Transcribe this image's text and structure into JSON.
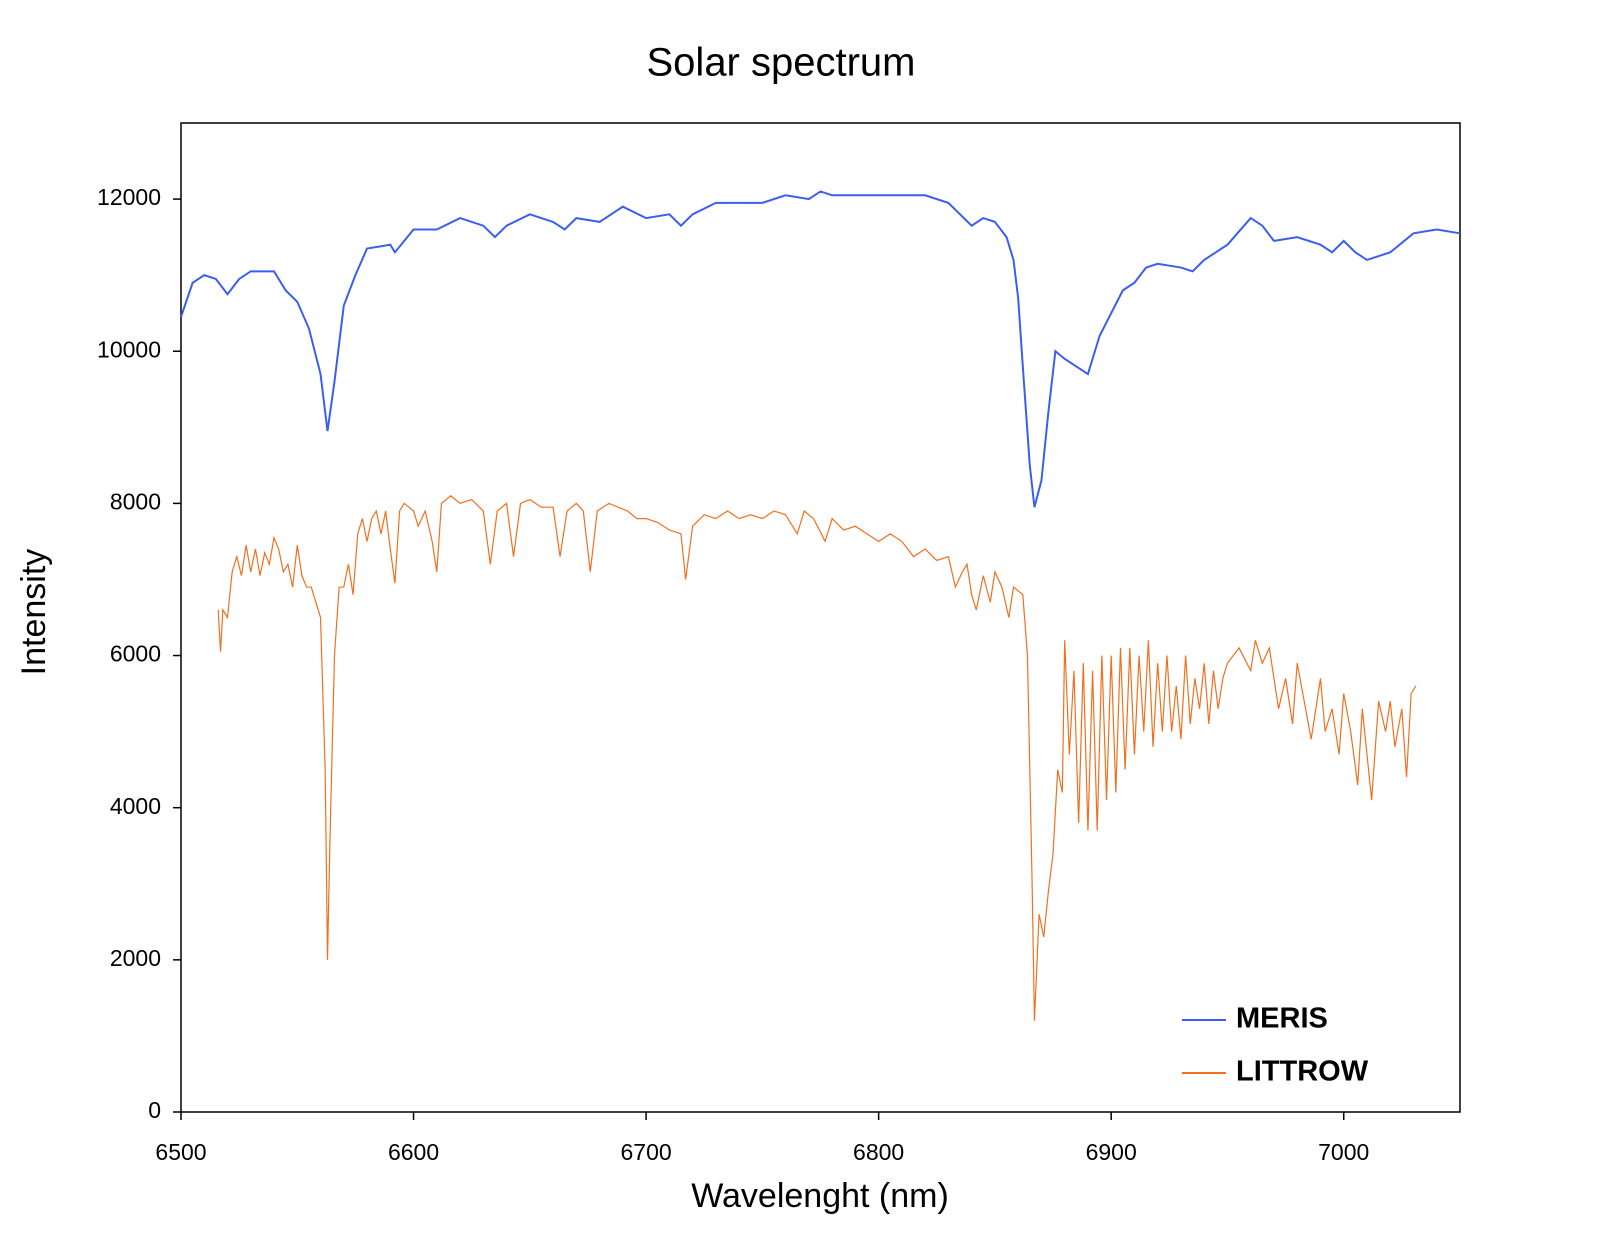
{
  "chart_data": {
    "type": "line",
    "title": "Solar spectrum",
    "x_label": "Wavelenght (nm)",
    "y_label": "Intensity",
    "xlim": [
      6500,
      7050
    ],
    "xticks": [
      6500,
      6600,
      6700,
      6800,
      6900,
      7000
    ],
    "ylim": [
      0,
      13000
    ],
    "yticks": [
      0,
      2000,
      4000,
      6000,
      8000,
      10000,
      12000
    ],
    "legend": "lower right",
    "series": [
      {
        "name": "MERIS",
        "color": "#3a5ff0",
        "x": [
          6500,
          6505,
          6510,
          6515,
          6520,
          6525,
          6530,
          6540,
          6545,
          6550,
          6555,
          6560,
          6563,
          6566,
          6570,
          6575,
          6580,
          6590,
          6592,
          6600,
          6610,
          6620,
          6630,
          6635,
          6640,
          6650,
          6660,
          6665,
          6670,
          6680,
          6690,
          6700,
          6710,
          6715,
          6720,
          6730,
          6740,
          6750,
          6760,
          6770,
          6775,
          6780,
          6790,
          6800,
          6810,
          6820,
          6830,
          6835,
          6840,
          6845,
          6850,
          6855,
          6858,
          6860,
          6862,
          6865,
          6867,
          6870,
          6873,
          6876,
          6880,
          6885,
          6890,
          6895,
          6900,
          6905,
          6910,
          6915,
          6920,
          6930,
          6935,
          6940,
          6945,
          6950,
          6960,
          6965,
          6970,
          6980,
          6990,
          6995,
          7000,
          7005,
          7010,
          7020,
          7030,
          7040,
          7050
        ],
        "values": [
          10450,
          10900,
          11000,
          10950,
          10750,
          10950,
          11050,
          11050,
          10800,
          10650,
          10300,
          9700,
          8950,
          9600,
          10600,
          11000,
          11350,
          11400,
          11300,
          11600,
          11600,
          11750,
          11650,
          11500,
          11650,
          11800,
          11700,
          11600,
          11750,
          11700,
          11900,
          11750,
          11800,
          11650,
          11800,
          11950,
          11950,
          11950,
          12050,
          12000,
          12100,
          12050,
          12050,
          12050,
          12050,
          12050,
          11950,
          11800,
          11650,
          11750,
          11700,
          11500,
          11200,
          10700,
          9800,
          8500,
          7950,
          8300,
          9200,
          10000,
          9900,
          9800,
          9700,
          10200,
          10500,
          10800,
          10900,
          11100,
          11150,
          11100,
          11050,
          11200,
          11300,
          11400,
          11750,
          11650,
          11450,
          11500,
          11400,
          11300,
          11450,
          11300,
          11200,
          11300,
          11550,
          11600,
          11550
        ]
      },
      {
        "name": "LITTROW",
        "color": "#f07020",
        "x": [
          6516,
          6517,
          6518,
          6520,
          6522,
          6524,
          6526,
          6528,
          6530,
          6532,
          6534,
          6536,
          6538,
          6540,
          6542,
          6544,
          6546,
          6548,
          6550,
          6552,
          6554,
          6556,
          6558,
          6560,
          6562,
          6563,
          6564,
          6566,
          6568,
          6570,
          6572,
          6574,
          6576,
          6578,
          6580,
          6582,
          6584,
          6586,
          6588,
          6590,
          6592,
          6594,
          6596,
          6600,
          6602,
          6605,
          6608,
          6610,
          6612,
          6616,
          6620,
          6625,
          6630,
          6633,
          6636,
          6640,
          6643,
          6646,
          6650,
          6655,
          6660,
          6663,
          6666,
          6670,
          6673,
          6676,
          6679,
          6684,
          6688,
          6692,
          6696,
          6700,
          6705,
          6710,
          6715,
          6717,
          6720,
          6725,
          6730,
          6735,
          6740,
          6745,
          6750,
          6755,
          6760,
          6765,
          6768,
          6772,
          6777,
          6780,
          6785,
          6790,
          6795,
          6800,
          6805,
          6810,
          6815,
          6820,
          6825,
          6830,
          6833,
          6836,
          6838,
          6840,
          6842,
          6845,
          6848,
          6850,
          6853,
          6856,
          6858,
          6862,
          6864,
          6866,
          6867,
          6869,
          6871,
          6873,
          6875,
          6877,
          6879,
          6880,
          6882,
          6884,
          6886,
          6888,
          6890,
          6892,
          6894,
          6896,
          6898,
          6900,
          6902,
          6904,
          6906,
          6908,
          6910,
          6912,
          6914,
          6916,
          6918,
          6920,
          6922,
          6924,
          6926,
          6928,
          6930,
          6932,
          6934,
          6936,
          6938,
          6940,
          6942,
          6944,
          6946,
          6948,
          6950,
          6955,
          6960,
          6962,
          6965,
          6968,
          6970,
          6972,
          6975,
          6978,
          6980,
          6983,
          6986,
          6990,
          6992,
          6995,
          6998,
          7000,
          7003,
          7006,
          7008,
          7012,
          7015,
          7018,
          7020,
          7022,
          7025,
          7027,
          7029,
          7031
        ],
        "values": [
          6600,
          6050,
          6600,
          6500,
          7100,
          7300,
          7050,
          7450,
          7100,
          7400,
          7050,
          7350,
          7200,
          7550,
          7400,
          7100,
          7200,
          6900,
          7450,
          7050,
          6900,
          6900,
          6700,
          6500,
          4500,
          2000,
          3500,
          6000,
          6900,
          6900,
          7200,
          6800,
          7600,
          7800,
          7500,
          7800,
          7900,
          7600,
          7900,
          7400,
          6950,
          7900,
          8000,
          7900,
          7700,
          7900,
          7500,
          7100,
          8000,
          8100,
          8000,
          8050,
          7900,
          7200,
          7900,
          8000,
          7300,
          8000,
          8050,
          7950,
          7950,
          7300,
          7900,
          8000,
          7900,
          7100,
          7900,
          8000,
          7950,
          7900,
          7800,
          7800,
          7750,
          7650,
          7600,
          7000,
          7700,
          7850,
          7800,
          7900,
          7800,
          7850,
          7800,
          7900,
          7850,
          7600,
          7900,
          7800,
          7500,
          7800,
          7650,
          7700,
          7600,
          7500,
          7600,
          7500,
          7300,
          7400,
          7250,
          7300,
          6900,
          7100,
          7200,
          6800,
          6600,
          7050,
          6700,
          7100,
          6900,
          6500,
          6900,
          6800,
          6000,
          3000,
          1200,
          2600,
          2300,
          2900,
          3400,
          4500,
          4200,
          6200,
          4700,
          5800,
          3800,
          5900,
          3700,
          5800,
          3700,
          6000,
          4100,
          6000,
          4200,
          6100,
          4500,
          6100,
          4700,
          6000,
          5000,
          6200,
          4800,
          5900,
          5000,
          6000,
          5000,
          5600,
          4900,
          6000,
          5100,
          5700,
          5300,
          5900,
          5100,
          5800,
          5300,
          5700,
          5900,
          6100,
          5800,
          6200,
          5900,
          6100,
          5700,
          5300,
          5700,
          5100,
          5900,
          5400,
          4900,
          5700,
          5000,
          5300,
          4700,
          5500,
          5000,
          4300,
          5300,
          4100,
          5400,
          5000,
          5400,
          4800,
          5300,
          4400,
          5500,
          5600
        ]
      }
    ]
  }
}
